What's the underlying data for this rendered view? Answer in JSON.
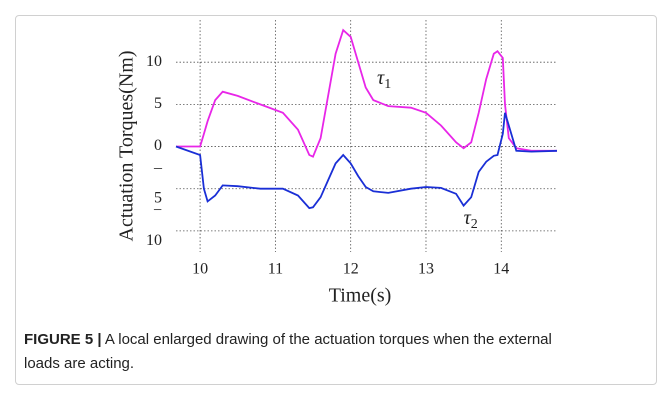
{
  "chart_data": {
    "type": "line",
    "y_label": "Actuation Torques(Nm)",
    "x_label": "Time(s)",
    "xlim": [
      9.68,
      14.74
    ],
    "ylim": [
      -12.5,
      15
    ],
    "xticks": [
      10,
      11,
      12,
      13,
      14
    ],
    "yticks": [
      {
        "value": -10,
        "label": "−10"
      },
      {
        "value": -5,
        "label": "–5"
      },
      0,
      5,
      10
    ],
    "grid": true,
    "x": [
      9.68,
      10.0,
      10.05,
      10.1,
      10.2,
      10.3,
      10.5,
      10.8,
      11.1,
      11.3,
      11.45,
      11.5,
      11.6,
      11.7,
      11.8,
      11.9,
      12.0,
      12.1,
      12.2,
      12.3,
      12.5,
      12.8,
      13.0,
      13.2,
      13.4,
      13.5,
      13.6,
      13.7,
      13.8,
      13.9,
      13.95,
      14.02,
      14.05,
      14.1,
      14.2,
      14.4,
      14.74
    ],
    "series": [
      {
        "name": "τ1",
        "color": "#e826e8",
        "label_x": 12.35,
        "label_y": 8,
        "values": [
          0,
          0,
          1.5,
          3,
          5.5,
          6.5,
          6,
          5,
          4,
          2,
          -1,
          -1.2,
          1,
          6,
          11,
          13.8,
          13,
          10,
          7,
          5.5,
          4.8,
          4.6,
          4,
          2.5,
          0.5,
          -0.2,
          0.5,
          4,
          8,
          11,
          11.3,
          10.5,
          5,
          1,
          -0.2,
          -0.5,
          -0.5
        ]
      },
      {
        "name": "τ2",
        "color": "#1a2fd6",
        "label_x": 13.5,
        "label_y": -8.6,
        "values": [
          0,
          -1,
          -5,
          -6.5,
          -5.8,
          -4.6,
          -4.7,
          -5,
          -5,
          -5.8,
          -7.3,
          -7.2,
          -6,
          -4,
          -2,
          -1,
          -2,
          -3.5,
          -4.8,
          -5.3,
          -5.5,
          -5,
          -4.8,
          -4.9,
          -5.6,
          -7,
          -6,
          -3,
          -1.8,
          -1.1,
          -1,
          1.5,
          4,
          2.5,
          -0.5,
          -0.6,
          -0.5
        ]
      }
    ]
  },
  "caption": {
    "label": "FIGURE 5 |",
    "text": "A local enlarged drawing of the actuation torques when the external loads are acting."
  }
}
